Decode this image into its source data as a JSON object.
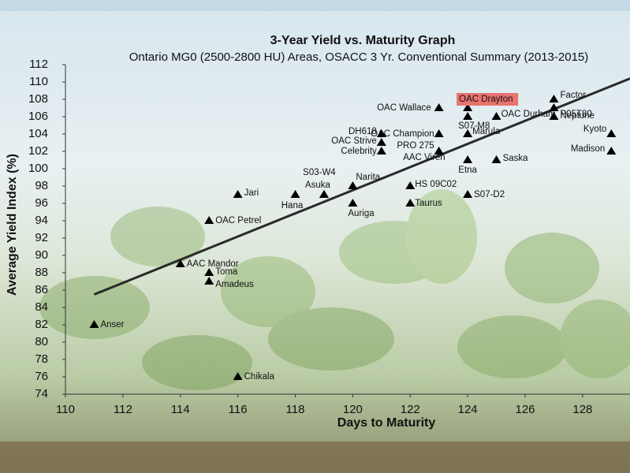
{
  "chart_data": {
    "type": "scatter",
    "title": "3-Year Yield vs. Maturity Graph",
    "subtitle": "Ontario MG0 (2500-2800 HU) Areas, OSACC 3 Yr. Conventional Summary (2013-2015)",
    "x_label": "Days to Maturity",
    "y_label": "Average Yield Index (%)",
    "xlim": [
      110,
      129.65
    ],
    "ylim": [
      74,
      112
    ],
    "xticks": [
      110,
      112,
      114,
      116,
      118,
      120,
      122,
      124,
      126,
      128
    ],
    "yticks": [
      74,
      76,
      78,
      80,
      82,
      84,
      86,
      88,
      90,
      92,
      94,
      96,
      98,
      100,
      102,
      104,
      106,
      108,
      110,
      112
    ],
    "marker_color": "#000000",
    "highlight_color": "#e8736f",
    "trendline": {
      "x": [
        111,
        129.65
      ],
      "y": [
        85.5,
        110.4
      ],
      "color": "#2a2a2a"
    },
    "points": [
      {
        "label": "Anser",
        "x": 111,
        "y": 82
      },
      {
        "label": "AAC Mandor",
        "x": 114,
        "y": 89
      },
      {
        "label": "Toma",
        "x": 115,
        "y": 88
      },
      {
        "label": "Amadeus",
        "x": 115,
        "y": 87
      },
      {
        "label": "OAC Petrel",
        "x": 115,
        "y": 94
      },
      {
        "label": "Jari",
        "x": 116,
        "y": 97
      },
      {
        "label": "Chikala",
        "x": 116,
        "y": 76
      },
      {
        "label": "Hana",
        "x": 118,
        "y": 97
      },
      {
        "label": "Asuka",
        "x": 119,
        "y": 97
      },
      {
        "label": "S03-W4",
        "x": 119,
        "y": 97
      },
      {
        "label": "Narita",
        "x": 120,
        "y": 98
      },
      {
        "label": "Auriga",
        "x": 120,
        "y": 96
      },
      {
        "label": "DH618",
        "x": 121,
        "y": 104
      },
      {
        "label": "OAC Strive",
        "x": 121,
        "y": 103
      },
      {
        "label": "Celebrity",
        "x": 121,
        "y": 102
      },
      {
        "label": "HS 09C02",
        "x": 122,
        "y": 98
      },
      {
        "label": "Taurus",
        "x": 122,
        "y": 96
      },
      {
        "label": "OAC  Wallace",
        "x": 123,
        "y": 107
      },
      {
        "label": "OAC Champion",
        "x": 123,
        "y": 104
      },
      {
        "label": "PRO  275",
        "x": 123,
        "y": 102
      },
      {
        "label": "AAC Viren",
        "x": 123,
        "y": 102
      },
      {
        "label": "OAC Drayton",
        "x": 124,
        "y": 107
      },
      {
        "label": "S07-M8",
        "x": 124,
        "y": 106
      },
      {
        "label": "Marula",
        "x": 124,
        "y": 104
      },
      {
        "label": "Etna",
        "x": 124,
        "y": 101
      },
      {
        "label": "S07-D2",
        "x": 124,
        "y": 97
      },
      {
        "label": "Saska",
        "x": 125,
        "y": 101
      },
      {
        "label": "OAC Durham",
        "x": 125,
        "y": 106
      },
      {
        "label": "Factor",
        "x": 127,
        "y": 108
      },
      {
        "label": "P05T80",
        "x": 127,
        "y": 107
      },
      {
        "label": "Neptune",
        "x": 127,
        "y": 106
      },
      {
        "label": "Kyoto",
        "x": 129,
        "y": 104
      },
      {
        "label": "Madison",
        "x": 129,
        "y": 102
      }
    ]
  }
}
